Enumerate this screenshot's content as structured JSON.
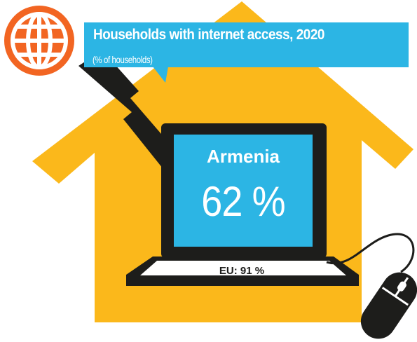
{
  "callout": {
    "title": "Households with internet access, 2020",
    "subtitle": "(% of households)"
  },
  "screen": {
    "country": "Armenia",
    "value": "62 %"
  },
  "eu_label": "EU: 91 %",
  "colors": {
    "house": "#fbb81b",
    "callout": "#2cb5e4",
    "screen": "#2cb5e4",
    "globe": "#f26522",
    "laptop": "#1d1d1b"
  },
  "icons": [
    "globe-icon",
    "lightning-bolt-icon",
    "house-icon",
    "laptop-icon",
    "mouse-icon"
  ]
}
